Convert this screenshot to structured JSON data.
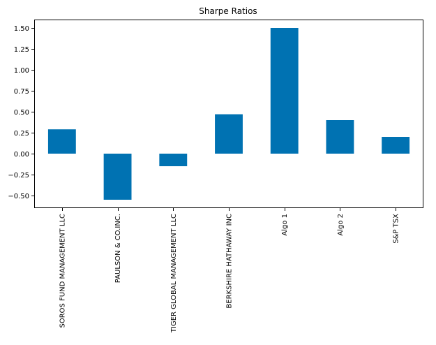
{
  "chart_data": {
    "type": "bar",
    "title": "Sharpe Ratios",
    "xlabel": "",
    "ylabel": "",
    "categories": [
      "SOROS FUND MANAGEMENT LLC",
      "PAULSON & CO.INC.",
      "TIGER GLOBAL MANAGEMENT LLC",
      "BERKSHIRE HATHAWAY INC",
      "Algo 1",
      "Algo 2",
      "S&P TSX"
    ],
    "values": [
      0.29,
      -0.55,
      -0.15,
      0.47,
      1.5,
      0.4,
      0.2
    ],
    "ylim": [
      -0.65,
      1.6
    ],
    "yticks": [
      -0.5,
      -0.25,
      0.0,
      0.25,
      0.5,
      0.75,
      1.0,
      1.25,
      1.5
    ],
    "ytick_labels": [
      "−0.50",
      "−0.25",
      "0.00",
      "0.25",
      "0.50",
      "0.75",
      "1.00",
      "1.25",
      "1.50"
    ],
    "bar_color": "#0072b2",
    "grid": false,
    "legend": "none"
  }
}
